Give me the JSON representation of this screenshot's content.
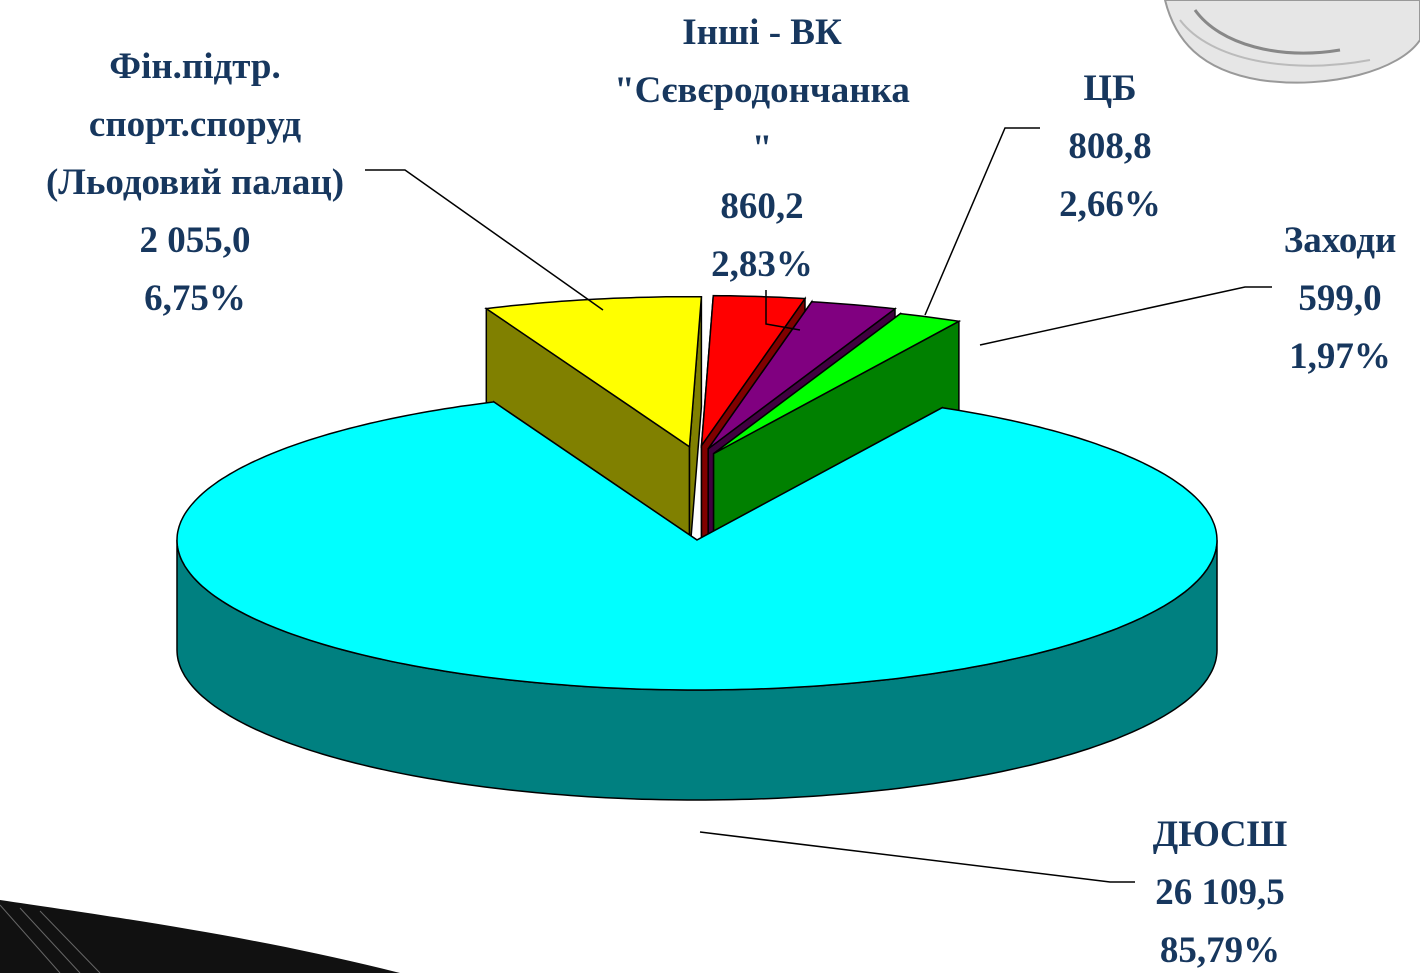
{
  "chart_data": {
    "type": "pie3d",
    "categories": [
      "Фін.підтр.\nспорт.споруд\n(Льодовий палац)",
      "Інші - ВК\n\"Сєвєродончанка\n\"",
      "ЦБ",
      "Заходи",
      "ДЮСШ"
    ],
    "values": [
      2055.0,
      860.2,
      808.8,
      599.0,
      26109.5
    ],
    "value_labels": [
      "2 055,0",
      "860,2",
      "808,8",
      "599,0",
      "26 109,5"
    ],
    "shares": [
      6.75,
      2.83,
      2.66,
      1.97,
      85.79
    ],
    "share_labels": [
      "6,75%",
      "2,83%",
      "2,66%",
      "1,97%",
      "85,79%"
    ],
    "colors": [
      "#ffff00",
      "#ff0000",
      "#800080",
      "#00ff00",
      "#00ffff"
    ],
    "side_colors": [
      "#808000",
      "#800000",
      "#400040",
      "#008000",
      "#008080"
    ],
    "explode": [
      true,
      true,
      true,
      true,
      false
    ]
  }
}
